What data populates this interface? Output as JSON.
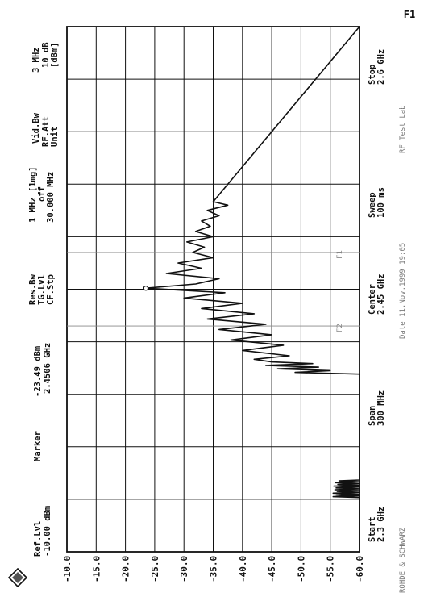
{
  "chart_data": {
    "type": "line",
    "orientation": "rotated -90deg (frequency axis runs bottom-to-top)",
    "ref_level": "Ref.Lvl",
    "ref_level_value": "-10.00 dBm",
    "marker_label": "Marker",
    "marker_value": "-23.49 dBm",
    "marker_freq": "2.4506 GHz",
    "res_bw_label": "Res.Bw",
    "res_bw_value": "1 MHz [1mg]",
    "tg_lvl_label": "TG.Lvl",
    "tg_lvl_value": "off",
    "cf_stp_label": "CF.Stp",
    "cf_stp_value": "30.000 MHz",
    "vid_bw_label": "Vid.Bw",
    "vid_bw_value": "3 MHz",
    "rf_att_label": "RF.Att",
    "rf_att_value": "10 dB",
    "unit_label": "Unit",
    "unit_value": "[dBm]",
    "start_label": "Start",
    "start_value": "2.3 GHz",
    "center_label": "Center",
    "center_value": "2.45 GHz",
    "stop_label": "Stop",
    "stop_value": "2.6 GHz",
    "span_label": "Span",
    "span_value": "300 MHz",
    "sweep_label": "Sweep",
    "sweep_value": "100 ms",
    "corner_box": "F1",
    "y_ticks": [
      "-10.0",
      "-15.0",
      "-20.0",
      "-25.0",
      "-30.0",
      "-35.0",
      "-40.0",
      "-45.0",
      "-50.0",
      "-55.0",
      "-60.0"
    ],
    "ylim": [
      -60,
      -10
    ],
    "xlim": [
      2.3,
      2.6
    ],
    "x_unit": "GHz",
    "y_unit": "dBm",
    "grid": true,
    "marker_points": [
      {
        "label": "F2",
        "x": 2.429
      },
      {
        "label": "F1",
        "x": 2.471
      }
    ],
    "series": [
      {
        "x": [
          2.3,
          2.331,
          2.3315,
          2.332,
          2.3325,
          2.333,
          2.3335,
          2.334,
          2.3345,
          2.335,
          2.3355,
          2.336,
          2.3365,
          2.337,
          2.3375,
          2.338,
          2.3385,
          2.339,
          2.3395,
          2.34,
          2.3405,
          2.341,
          2.4015,
          2.4025,
          2.4035,
          2.4045,
          2.4055,
          2.4065,
          2.4075,
          2.4085,
          2.41,
          2.412,
          2.415,
          2.418,
          2.421,
          2.424,
          2.427,
          2.43,
          2.433,
          2.436,
          2.439,
          2.442,
          2.445,
          2.448,
          2.4506,
          2.453,
          2.456,
          2.459,
          2.462,
          2.465,
          2.468,
          2.471,
          2.474,
          2.477,
          2.48,
          2.483,
          2.486,
          2.489,
          2.492,
          2.495,
          2.498,
          2.5,
          2.6
        ],
        "y": [
          -60.0,
          -60.0,
          -55.5,
          -60.0,
          -56.0,
          -60.0,
          -55.5,
          -60.0,
          -56.2,
          -60.0,
          -55.8,
          -60.0,
          -56.0,
          -60.0,
          -55.6,
          -60.0,
          -56.3,
          -60.0,
          -55.9,
          -60.0,
          -56.5,
          -60.0,
          -60.0,
          -49.0,
          -55.0,
          -46.0,
          -53.0,
          -44.0,
          -52.0,
          -45.0,
          -42.0,
          -48.0,
          -40.0,
          -47.0,
          -38.0,
          -45.0,
          -36.0,
          -44.0,
          -34.0,
          -42.0,
          -33.0,
          -40.0,
          -30.0,
          -37.0,
          -23.5,
          -32.0,
          -36.0,
          -27.0,
          -33.0,
          -29.0,
          -35.0,
          -31.5,
          -33.5,
          -30.5,
          -35.0,
          -32.0,
          -34.5,
          -33.0,
          -36.0,
          -34.0,
          -37.5,
          -35.0,
          -60.0
        ]
      }
    ]
  },
  "footer_brand": "ROHDE & SCHWARZ",
  "footer_info_1": "Date 11.Nov.1999 19:05",
  "footer_info_2": "RF Test Lab"
}
